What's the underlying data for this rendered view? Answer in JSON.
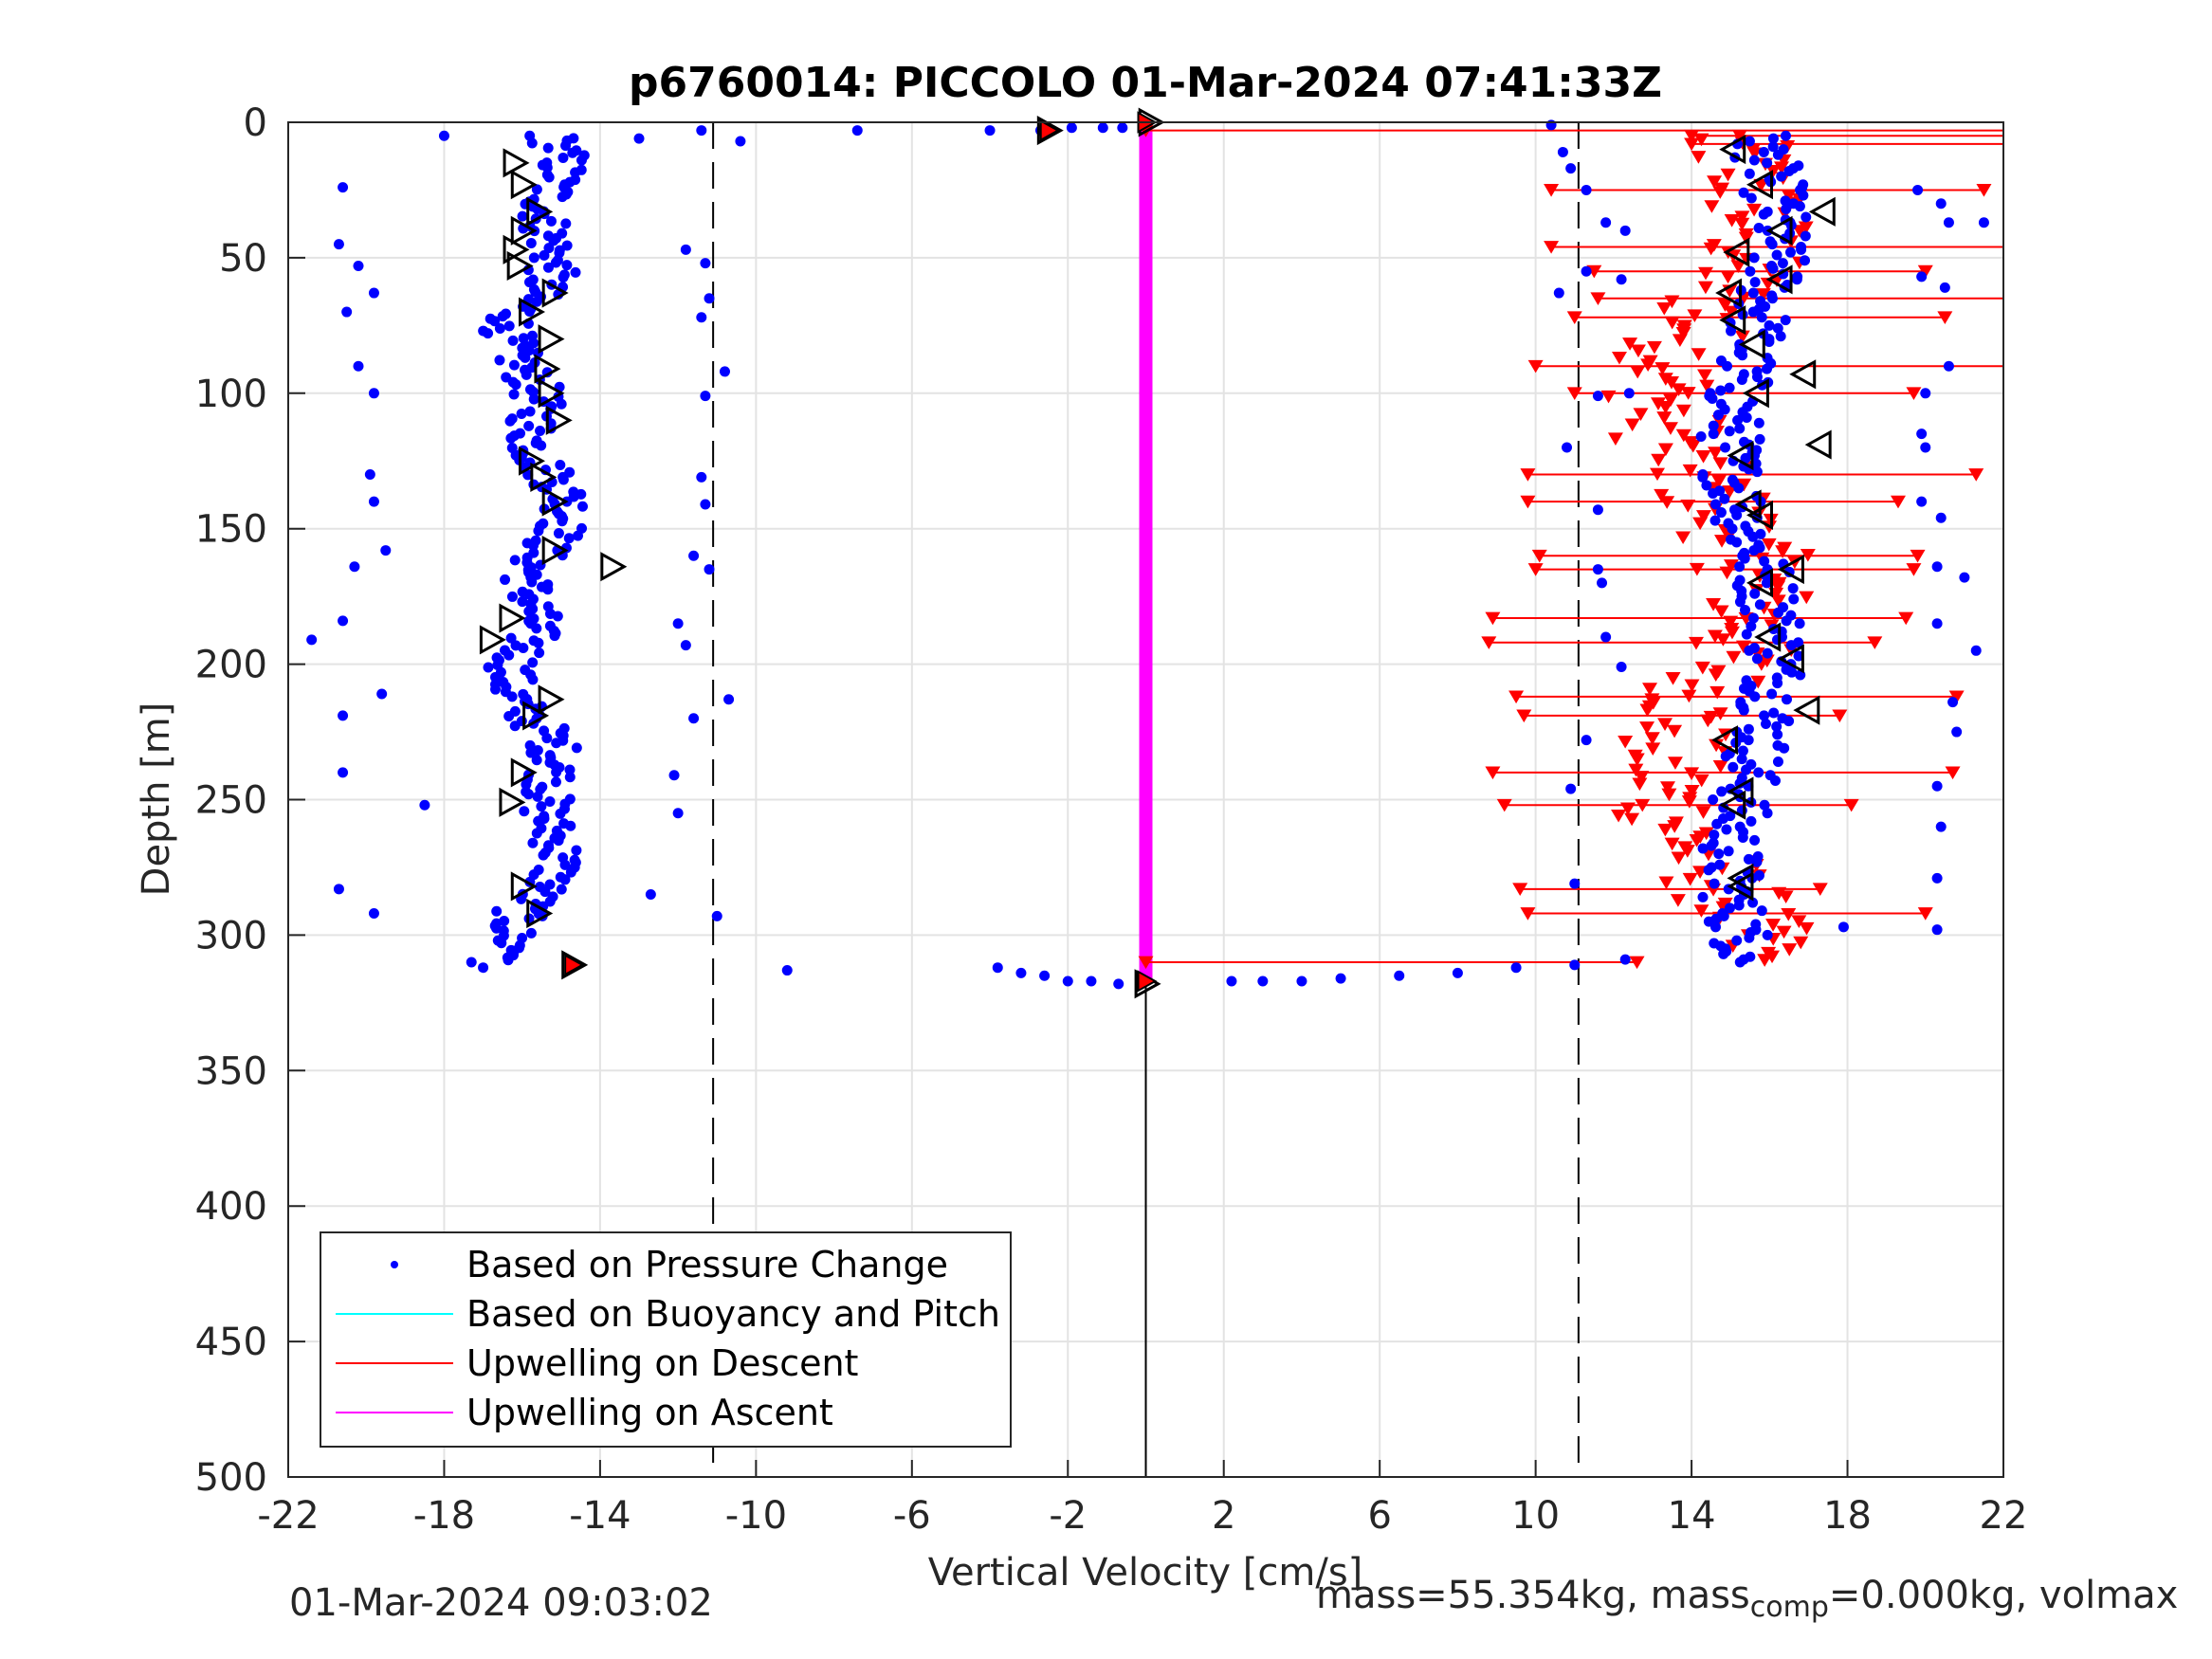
{
  "chart_data": {
    "type": "scatter",
    "title": "p6760014: PICCOLO 01-Mar-2024 07:41:33Z",
    "xlabel": "Vertical Velocity [cm/s]",
    "ylabel": "Depth [m]",
    "xlim": [
      -22,
      22
    ],
    "ylim": [
      0,
      500
    ],
    "y_reversed": true,
    "grid": true,
    "xticks": [
      "-22",
      "-18",
      "-14",
      "-10",
      "-6",
      "-2",
      "2",
      "6",
      "10",
      "14",
      "18",
      "22"
    ],
    "yticks": [
      "0",
      "50",
      "100",
      "150",
      "200",
      "250",
      "300",
      "350",
      "400",
      "450",
      "500"
    ],
    "reference_lines": {
      "dashed_x": [
        -11.1,
        11.1
      ],
      "solid_x": 0
    },
    "legend": {
      "placement": "bottom-left",
      "entries": [
        {
          "label": "Based on Pressure Change",
          "color": "#0000ff",
          "style": "dot"
        },
        {
          "label": "Based on Buoyancy and Pitch",
          "color": "#00ffff",
          "style": "line"
        },
        {
          "label": "Upwelling on Descent",
          "color": "#ff0000",
          "style": "line"
        },
        {
          "label": "Upwelling on Ascent",
          "color": "#ff00ff",
          "style": "line"
        }
      ]
    },
    "series": [
      {
        "name": "Based on Pressure Change",
        "color": "#0000ff",
        "descent_velocity_band": {
          "x_range": [
            -16.8,
            -14.3
          ],
          "depth_range": [
            5,
            310
          ]
        },
        "ascent_velocity_band": {
          "x_range": [
            13.0,
            17.0
          ],
          "depth_range": [
            5,
            310
          ]
        },
        "surface_points": [
          [
            -18,
            5
          ],
          [
            -13,
            6
          ],
          [
            -11.4,
            3
          ],
          [
            -10.4,
            7
          ],
          [
            -7.4,
            3
          ],
          [
            -4,
            3
          ],
          [
            -2.7,
            3
          ],
          [
            -1.9,
            2
          ],
          [
            -1.1,
            2
          ],
          [
            -0.6,
            2
          ]
        ],
        "bottom_transition": [
          [
            -3.8,
            312
          ],
          [
            -3.2,
            314
          ],
          [
            -2.6,
            315
          ],
          [
            -2.0,
            317
          ],
          [
            -1.4,
            317
          ],
          [
            -0.7,
            318
          ],
          [
            2.2,
            317
          ],
          [
            3.0,
            317
          ],
          [
            4.0,
            317
          ],
          [
            5.0,
            316
          ],
          [
            6.5,
            315
          ],
          [
            8.0,
            314
          ],
          [
            9.5,
            312
          ],
          [
            11.0,
            311
          ],
          [
            12.3,
            309
          ]
        ],
        "outliers": [
          [
            -20.6,
            24
          ],
          [
            -20.7,
            45
          ],
          [
            -20.2,
            53
          ],
          [
            -19.8,
            63
          ],
          [
            -20.5,
            70
          ],
          [
            -20.2,
            90
          ],
          [
            -19.8,
            100
          ],
          [
            -19.9,
            130
          ],
          [
            -19.8,
            140
          ],
          [
            -19.5,
            158
          ],
          [
            -20.3,
            164
          ],
          [
            -20.6,
            184
          ],
          [
            -21.4,
            191
          ],
          [
            -19.6,
            211
          ],
          [
            -20.6,
            219
          ],
          [
            -20.6,
            240
          ],
          [
            -18.5,
            252
          ],
          [
            -20.7,
            283
          ],
          [
            -19.8,
            292
          ],
          [
            -17.3,
            310
          ],
          [
            -17.0,
            312
          ],
          [
            -11.8,
            47
          ],
          [
            -11.3,
            52
          ],
          [
            -11.2,
            65
          ],
          [
            -11.4,
            72
          ],
          [
            -10.8,
            92
          ],
          [
            -11.3,
            101
          ],
          [
            -11.4,
            131
          ],
          [
            -11.3,
            141
          ],
          [
            -11.6,
            160
          ],
          [
            -11.2,
            165
          ],
          [
            -12.0,
            185
          ],
          [
            -11.8,
            193
          ],
          [
            -10.7,
            213
          ],
          [
            -11.6,
            220
          ],
          [
            -12.1,
            241
          ],
          [
            -12.0,
            255
          ],
          [
            -12.7,
            285
          ],
          [
            -11.0,
            293
          ],
          [
            -9.2,
            313
          ],
          [
            10.4,
            1
          ],
          [
            10.7,
            11
          ],
          [
            10.9,
            17
          ],
          [
            11.3,
            25
          ],
          [
            11.8,
            37
          ],
          [
            11.3,
            55
          ],
          [
            10.6,
            63
          ],
          [
            12.2,
            58
          ],
          [
            12.3,
            40
          ],
          [
            11.6,
            101
          ],
          [
            10.8,
            120
          ],
          [
            11.6,
            143
          ],
          [
            12.4,
            100
          ],
          [
            11.7,
            170
          ],
          [
            11.6,
            165
          ],
          [
            11.8,
            190
          ],
          [
            12.2,
            201
          ],
          [
            11.3,
            228
          ],
          [
            10.9,
            246
          ],
          [
            11.0,
            281
          ],
          [
            19.8,
            25
          ],
          [
            20.4,
            30
          ],
          [
            20.6,
            37
          ],
          [
            21.5,
            37
          ],
          [
            19.9,
            57
          ],
          [
            20.5,
            61
          ],
          [
            20.6,
            90
          ],
          [
            20.0,
            100
          ],
          [
            19.9,
            115
          ],
          [
            20.0,
            120
          ],
          [
            19.9,
            140
          ],
          [
            20.4,
            146
          ],
          [
            20.3,
            164
          ],
          [
            21.0,
            168
          ],
          [
            20.3,
            185
          ],
          [
            21.3,
            195
          ],
          [
            20.7,
            214
          ],
          [
            20.8,
            225
          ],
          [
            20.3,
            245
          ],
          [
            20.4,
            260
          ],
          [
            20.3,
            279
          ],
          [
            17.9,
            297
          ],
          [
            20.3,
            298
          ]
        ]
      },
      {
        "name": "Upwelling on Descent",
        "color": "#ff0000",
        "segments": [
          {
            "depth": 3,
            "from": 0,
            "to": 22
          },
          {
            "depth": 5,
            "from": 14,
            "to": 22
          },
          {
            "depth": 8,
            "from": 14,
            "to": 22
          },
          {
            "depth": 25,
            "from": 10.4,
            "to": 21.5
          },
          {
            "depth": 46,
            "from": 10.4,
            "to": 22
          },
          {
            "depth": 55,
            "from": 11.5,
            "to": 20
          },
          {
            "depth": 65,
            "from": 11.6,
            "to": 22
          },
          {
            "depth": 72,
            "from": 11,
            "to": 20.5
          },
          {
            "depth": 90,
            "from": 10,
            "to": 22
          },
          {
            "depth": 100,
            "from": 11,
            "to": 19.7
          },
          {
            "depth": 130,
            "from": 9.8,
            "to": 21.3
          },
          {
            "depth": 140,
            "from": 9.8,
            "to": 19.3
          },
          {
            "depth": 160,
            "from": 10.1,
            "to": 19.8
          },
          {
            "depth": 165,
            "from": 10,
            "to": 19.7
          },
          {
            "depth": 183,
            "from": 8.9,
            "to": 19.5
          },
          {
            "depth": 192,
            "from": 8.8,
            "to": 18.7
          },
          {
            "depth": 212,
            "from": 9.5,
            "to": 20.8
          },
          {
            "depth": 219,
            "from": 9.7,
            "to": 17.8
          },
          {
            "depth": 240,
            "from": 8.9,
            "to": 20.7
          },
          {
            "depth": 252,
            "from": 9.2,
            "to": 18.1
          },
          {
            "depth": 283,
            "from": 9.6,
            "to": 17.3
          },
          {
            "depth": 292,
            "from": 9.8,
            "to": 20
          },
          {
            "depth": 310,
            "from": 0,
            "to": 12.6
          }
        ],
        "marker_band": {
          "x_range": [
            12.5,
            16.5
          ],
          "depth_range": [
            5,
            310
          ]
        }
      },
      {
        "name": "Upwelling on Ascent",
        "color": "#ff00ff",
        "vertical_line": {
          "x": 0,
          "depth_range": [
            3,
            316
          ]
        }
      }
    ],
    "black_triangles_left": [
      [
        -16.2,
        15
      ],
      [
        -16.0,
        23
      ],
      [
        -15.6,
        33
      ],
      [
        -16.0,
        40
      ],
      [
        -16.2,
        47
      ],
      [
        -16.1,
        53
      ],
      [
        -15.2,
        63
      ],
      [
        -15.8,
        70
      ],
      [
        -15.3,
        80
      ],
      [
        -15.4,
        91
      ],
      [
        -15.3,
        100
      ],
      [
        -15.1,
        110
      ],
      [
        -15.8,
        125
      ],
      [
        -15.5,
        131
      ],
      [
        -15.2,
        140
      ],
      [
        -15.2,
        158
      ],
      [
        -13.7,
        164
      ],
      [
        -16.3,
        183
      ],
      [
        -16.8,
        191
      ],
      [
        -15.3,
        213
      ],
      [
        -15.7,
        219
      ],
      [
        -16.0,
        240
      ],
      [
        -16.3,
        251
      ],
      [
        -16.0,
        282
      ],
      [
        -15.6,
        292
      ],
      [
        -14.7,
        311
      ],
      [
        -2.5,
        3
      ],
      [
        0.1,
        0
      ],
      [
        0,
        318
      ]
    ],
    "black_triangles_right": [
      [
        15.1,
        10
      ],
      [
        15.8,
        23
      ],
      [
        17.4,
        33
      ],
      [
        16.3,
        40
      ],
      [
        15.2,
        48
      ],
      [
        16.3,
        58
      ],
      [
        15.0,
        63
      ],
      [
        15.1,
        73
      ],
      [
        15.6,
        82
      ],
      [
        16.9,
        93
      ],
      [
        15.7,
        100
      ],
      [
        17.3,
        119
      ],
      [
        15.3,
        123
      ],
      [
        15.5,
        141
      ],
      [
        15.8,
        145
      ],
      [
        16.6,
        165
      ],
      [
        15.8,
        170
      ],
      [
        16.0,
        190
      ],
      [
        16.6,
        198
      ],
      [
        17.0,
        217
      ],
      [
        14.9,
        228
      ],
      [
        15.3,
        247
      ],
      [
        15.1,
        252
      ],
      [
        15.3,
        279
      ],
      [
        15.3,
        282
      ]
    ],
    "red_endpoints": [
      [
        -2.5,
        3
      ],
      [
        0,
        0
      ],
      [
        -14.7,
        311
      ],
      [
        0,
        317
      ]
    ]
  },
  "footer": {
    "timestamp": "01-Mar-2024 09:03:02",
    "mass_text": "mass=55.354kg, mass",
    "mass_sub": "comp",
    "mass_rest": "=0.000kg, volmax"
  }
}
